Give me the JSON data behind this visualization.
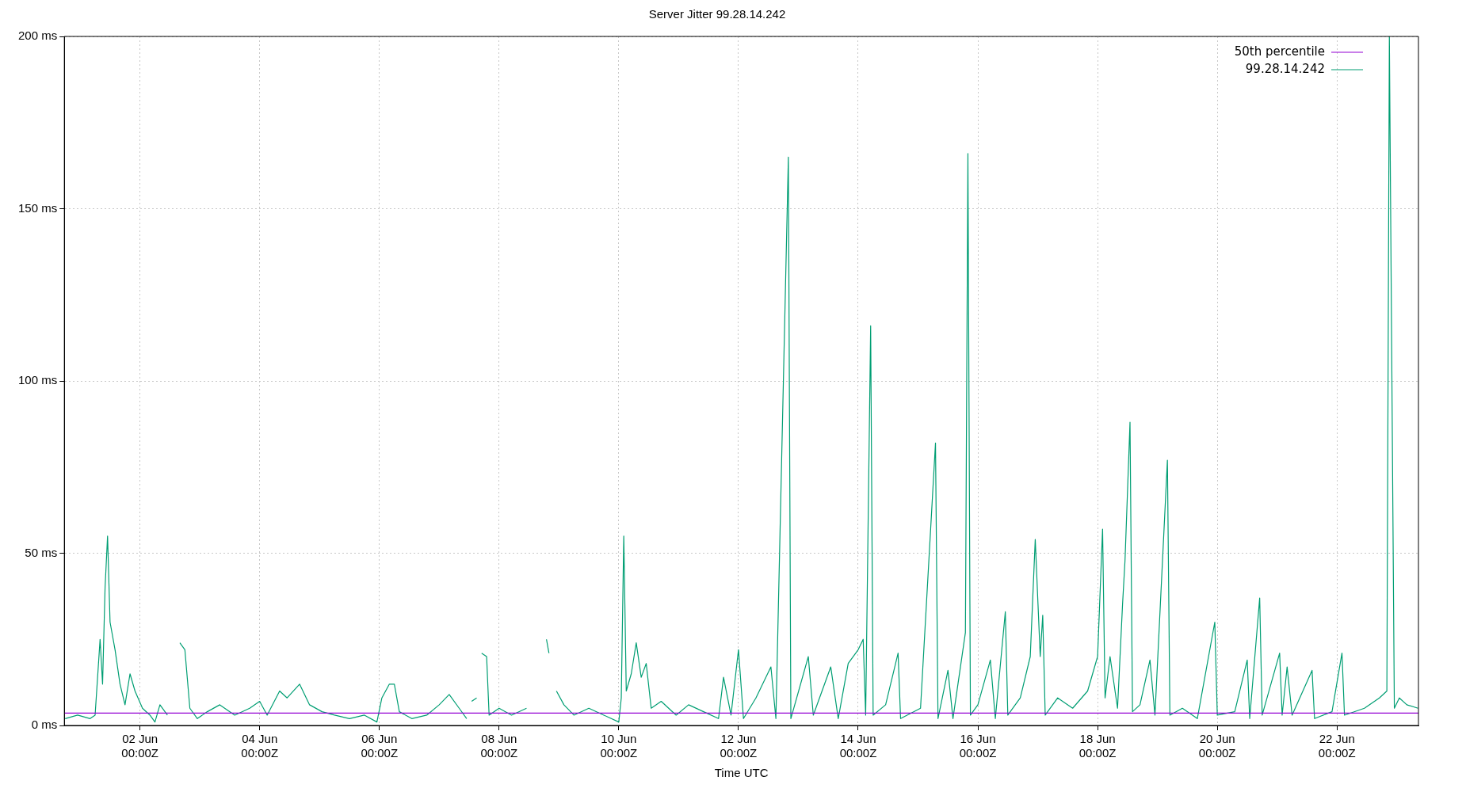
{
  "chart_data": {
    "type": "line",
    "title": "Server Jitter 99.28.14.242",
    "xlabel": "Time UTC",
    "xlim": [
      "--05-31T17:40",
      "--06-23T08:40"
    ],
    "xticks": [
      {
        "value": "--06-02T00:00",
        "label": "02 Jun\n00:00Z"
      },
      {
        "value": "--06-04T00:00",
        "label": "04 Jun\n00:00Z"
      },
      {
        "value": "--06-06T00:00",
        "label": "06 Jun\n00:00Z"
      },
      {
        "value": "--06-08T00:00",
        "label": "08 Jun\n00:00Z"
      },
      {
        "value": "--06-10T00:00",
        "label": "10 Jun\n00:00Z"
      },
      {
        "value": "--06-12T00:00",
        "label": "12 Jun\n00:00Z"
      },
      {
        "value": "--06-14T00:00",
        "label": "14 Jun\n00:00Z"
      },
      {
        "value": "--06-16T00:00",
        "label": "16 Jun\n00:00Z"
      },
      {
        "value": "--06-18T00:00",
        "label": "18 Jun\n00:00Z"
      },
      {
        "value": "--06-20T00:00",
        "label": "20 Jun\n00:00Z"
      },
      {
        "value": "--06-22T00:00",
        "label": "22 Jun\n00:00Z"
      }
    ],
    "ylim": [
      0,
      200
    ],
    "yticks": [
      {
        "value": 0,
        "label": "0 ms"
      },
      {
        "value": 50,
        "label": "50 ms"
      },
      {
        "value": 100,
        "label": "100 ms"
      },
      {
        "value": 150,
        "label": "150 ms"
      },
      {
        "value": 200,
        "label": "200 ms"
      }
    ],
    "grid": true,
    "legend": "top right",
    "marker": "none",
    "line_style": "solid",
    "series": [
      {
        "name": "50th percentile",
        "color": "#9400d3",
        "x": [
          "--05-31T17:40",
          "--06-23T08:40"
        ],
        "values": [
          3.6,
          3.6
        ]
      },
      {
        "name": "99.28.14.242",
        "color": "#009e73",
        "x": [
          "--05-31T18:00",
          "--05-31T23:00",
          "--06-01T04:00",
          "--06-01T06:00",
          "--06-01T08:00",
          "--06-01T09:00",
          "--06-01T10:00",
          "--06-01T11:00",
          "--06-01T12:00",
          "--06-01T14:00",
          "--06-01T16:00",
          "--06-01T18:00",
          "--06-01T20:00",
          "--06-01T22:00",
          "--06-02T01:00",
          "--06-02T04:00",
          "--06-02T06:00",
          "--06-02T08:00",
          "--06-02T11:00",
          "--06-02T13:00",
          "--06-02T16:00",
          "--06-02T18:00",
          "--06-02T20:00",
          "--06-02T23:00",
          "--06-03T03:00",
          "--06-03T08:00",
          "--06-03T14:00",
          "--06-03T20:00",
          "--06-04T00:00",
          "--06-04T03:00",
          "--06-04T08:00",
          "--06-04T11:00",
          "--06-04T16:00",
          "--06-04T20:00",
          "--06-05T01:00",
          "--06-05T06:00",
          "--06-05T12:00",
          "--06-05T18:00",
          "--06-05T23:00",
          "--06-06T01:00",
          "--06-06T04:00",
          "--06-06T06:00",
          "--06-06T08:00",
          "--06-06T13:00",
          "--06-06T19:00",
          "--06-07T00:00",
          "--06-07T04:00",
          "--06-07T08:00",
          "--06-07T11:00",
          "--06-07T12:00",
          "--06-07T13:00",
          "--06-07T15:00",
          "--06-07T16:00",
          "--06-07T17:00",
          "--06-07T19:00",
          "--06-07T20:00",
          "--06-08T00:00",
          "--06-08T05:00",
          "--06-08T11:00",
          "--06-08T16:00",
          "--06-08T19:00",
          "--06-08T20:00",
          "--06-08T21:00",
          "--06-08T23:00",
          "--06-09T02:00",
          "--06-09T06:00",
          "--06-09T12:00",
          "--06-09T18:00",
          "--06-10T00:00",
          "--06-10T01:00",
          "--06-10T02:00",
          "--06-10T03:00",
          "--06-10T05:00",
          "--06-10T07:00",
          "--06-10T09:00",
          "--06-10T11:00",
          "--06-10T13:00",
          "--06-10T17:00",
          "--06-10T23:00",
          "--06-11T04:00",
          "--06-11T10:00",
          "--06-11T16:00",
          "--06-11T18:00",
          "--06-11T21:00",
          "--06-12T00:00",
          "--06-12T02:00",
          "--06-12T07:00",
          "--06-12T13:00",
          "--06-12T15:00",
          "--06-12T20:00",
          "--06-12T21:00",
          "--06-13T04:00",
          "--06-13T06:00",
          "--06-13T13:00",
          "--06-13T16:00",
          "--06-13T20:00",
          "--06-14T00:00",
          "--06-14T02:00",
          "--06-14T03:00",
          "--06-14T05:00",
          "--06-14T06:00",
          "--06-14T11:00",
          "--06-14T16:00",
          "--06-14T17:00",
          "--06-15T01:00",
          "--06-15T07:00",
          "--06-15T08:00",
          "--06-15T12:00",
          "--06-15T14:00",
          "--06-15T19:00",
          "--06-15T20:00",
          "--06-15T21:00",
          "--06-16T00:00",
          "--06-16T05:00",
          "--06-16T07:00",
          "--06-16T11:00",
          "--06-16T12:00",
          "--06-16T17:00",
          "--06-16T21:00",
          "--06-16T23:00",
          "--06-17T01:00",
          "--06-17T02:00",
          "--06-17T03:00",
          "--06-17T08:00",
          "--06-17T14:00",
          "--06-17T20:00",
          "--06-18T00:00",
          "--06-18T02:00",
          "--06-18T03:00",
          "--06-18T05:00",
          "--06-18T08:00",
          "--06-18T10:00",
          "--06-18T11:00",
          "--06-18T13:00",
          "--06-18T14:00",
          "--06-18T17:00",
          "--06-18T21:00",
          "--06-18T23:00",
          "--06-19T04:00",
          "--06-19T05:00",
          "--06-19T10:00",
          "--06-19T16:00",
          "--06-19T23:00",
          "--06-20T00:00",
          "--06-20T07:00",
          "--06-20T12:00",
          "--06-20T13:00",
          "--06-20T17:00",
          "--06-20T18:00",
          "--06-21T01:00",
          "--06-21T02:00",
          "--06-21T04:00",
          "--06-21T06:00",
          "--06-21T14:00",
          "--06-21T15:00",
          "--06-21T22:00",
          "--06-22T02:00",
          "--06-22T03:00",
          "--06-22T11:00",
          "--06-22T17:00",
          "--06-22T20:00",
          "--06-22T21:00",
          "--06-22T23:00",
          "--06-23T01:00",
          "--06-23T04:00",
          "--06-23T08:30"
        ],
        "values": [
          2,
          3,
          2,
          3,
          25,
          12,
          40,
          55,
          30,
          22,
          12,
          6,
          15,
          10,
          5,
          3,
          1,
          6,
          3,
          null,
          24,
          22,
          5,
          2,
          4,
          6,
          3,
          5,
          7,
          3,
          10,
          8,
          12,
          6,
          4,
          3,
          2,
          3,
          1,
          8,
          12,
          12,
          4,
          2,
          3,
          6,
          9,
          5,
          2,
          null,
          7,
          8,
          null,
          21,
          20,
          3,
          5,
          3,
          5,
          null,
          25,
          21,
          null,
          10,
          6,
          3,
          5,
          3,
          1,
          8,
          55,
          10,
          15,
          24,
          14,
          18,
          5,
          7,
          3,
          6,
          4,
          2,
          14,
          3,
          22,
          2,
          8,
          17,
          2,
          165,
          2,
          20,
          3,
          17,
          2,
          18,
          22,
          25,
          3,
          116,
          3,
          6,
          21,
          2,
          5,
          82,
          2,
          16,
          2,
          27,
          166,
          3,
          6,
          19,
          2,
          33,
          3,
          8,
          20,
          54,
          20,
          32,
          3,
          8,
          5,
          10,
          20,
          57,
          8,
          20,
          5,
          35,
          48,
          88,
          4,
          6,
          19,
          3,
          77,
          3,
          5,
          2,
          30,
          3,
          4,
          19,
          2,
          37,
          3,
          21,
          3,
          17,
          3,
          16,
          2,
          4,
          21,
          3,
          5,
          8,
          10,
          200,
          5,
          8,
          6,
          5
        ]
      }
    ]
  }
}
